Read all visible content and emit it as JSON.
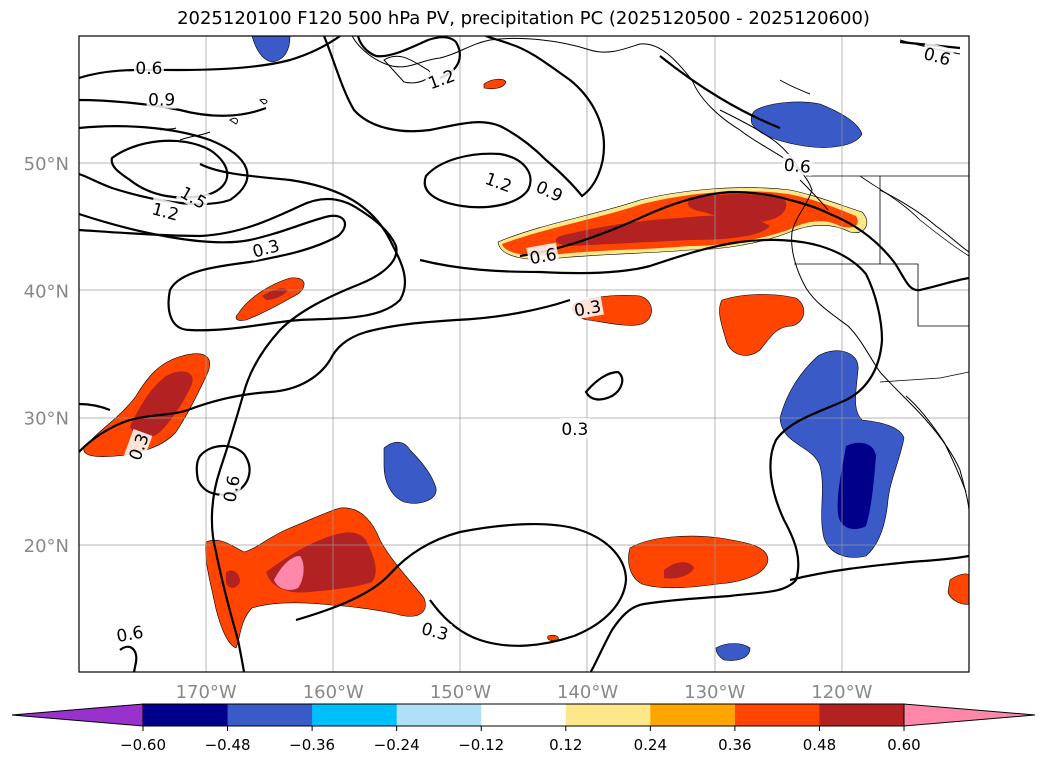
{
  "title": "2025120100 F120 500 hPa PV, precipitation PC (2025120500 - 2025120600)",
  "map": {
    "lon_range": [
      -180,
      -110
    ],
    "lat_range": [
      10,
      60
    ],
    "lat_labels": [
      {
        "lat": 50,
        "text": "50°N"
      },
      {
        "lat": 40,
        "text": "40°N"
      },
      {
        "lat": 30,
        "text": "30°N"
      },
      {
        "lat": 20,
        "text": "20°N"
      }
    ],
    "lon_labels": [
      {
        "lon": -170,
        "text": "170°W"
      },
      {
        "lon": -160,
        "text": "160°W"
      },
      {
        "lon": -150,
        "text": "150°W"
      },
      {
        "lon": -140,
        "text": "140°W"
      },
      {
        "lon": -130,
        "text": "130°W"
      },
      {
        "lon": -120,
        "text": "120°W"
      }
    ],
    "contour_labels": [
      {
        "lon": -174.5,
        "lat": 57.5,
        "text": "0.6"
      },
      {
        "lon": -173.5,
        "lat": 55.0,
        "text": "0.9"
      },
      {
        "lon": -173.2,
        "lat": 46.2,
        "text": "1.2",
        "rot": 15
      },
      {
        "lon": -171.0,
        "lat": 47.3,
        "text": "1.5",
        "rot": 30
      },
      {
        "lon": -165.3,
        "lat": 43.3,
        "text": "0.3",
        "rot": -15
      },
      {
        "lon": -151.5,
        "lat": 56.6,
        "text": "1.2",
        "rot": -20
      },
      {
        "lon": -147.0,
        "lat": 48.5,
        "text": "1.2",
        "rot": 20
      },
      {
        "lon": -143.0,
        "lat": 47.8,
        "text": "0.9",
        "rot": 25
      },
      {
        "lon": -143.5,
        "lat": 42.7,
        "text": "0.6",
        "rot": -10
      },
      {
        "lon": -140.0,
        "lat": 38.6,
        "text": "0.3",
        "rot": -10
      },
      {
        "lon": -141.0,
        "lat": 29.1,
        "text": "0.3"
      },
      {
        "lon": -168.0,
        "lat": 24.4,
        "text": "0.6",
        "rot": -80
      },
      {
        "lon": -175.3,
        "lat": 27.7,
        "text": "0.3",
        "rot": -70
      },
      {
        "lon": -152.0,
        "lat": 13.2,
        "text": "0.3",
        "rot": 15
      },
      {
        "lon": -176.0,
        "lat": 13.0,
        "text": "0.6",
        "rot": -10
      },
      {
        "lon": -123.5,
        "lat": 49.8,
        "text": "0.6",
        "rot": 5
      },
      {
        "lon": -112.5,
        "lat": 58.4,
        "text": "0.6",
        "rot": 15
      }
    ]
  },
  "colorbar": {
    "colors": [
      "#9932cc",
      "#00008b",
      "#3a5bc7",
      "#00bfff",
      "#aee0f7",
      "#ffffff",
      "#fce88a",
      "#ffa500",
      "#ff4500",
      "#b22222",
      "#ff88aa"
    ],
    "ticks": [
      "−0.60",
      "−0.48",
      "−0.36",
      "−0.24",
      "−0.12",
      "0.12",
      "0.24",
      "0.36",
      "0.48",
      "0.60"
    ]
  },
  "icons": {
    "colorbar-min-arrow": "left-triangle",
    "colorbar-max-arrow": "right-triangle"
  }
}
